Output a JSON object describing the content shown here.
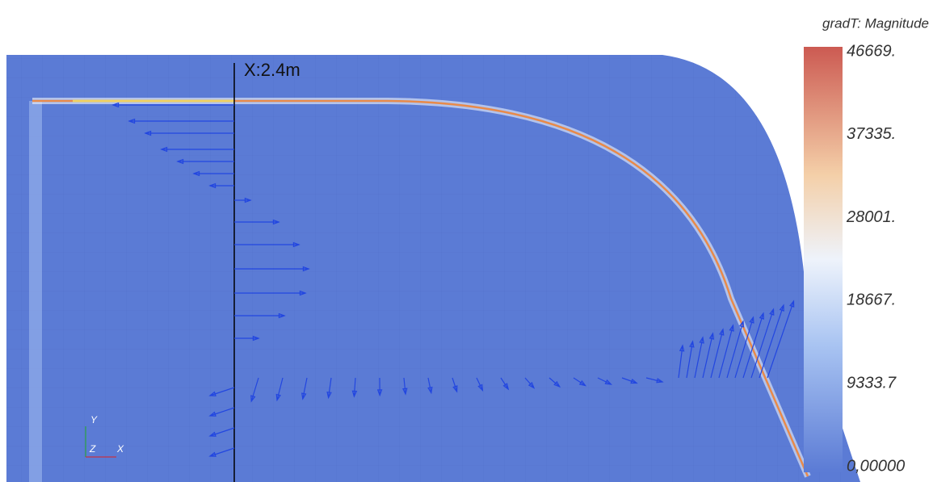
{
  "annotation": "X:2.4m",
  "colorbar": {
    "title": "gradT: Magnitude",
    "labels": [
      "46669.",
      "37335.",
      "28001.",
      "18667.",
      "9333.7",
      "0,00000"
    ]
  },
  "axes_triad": {
    "y": "Y",
    "z": "Z",
    "x": "X"
  }
}
